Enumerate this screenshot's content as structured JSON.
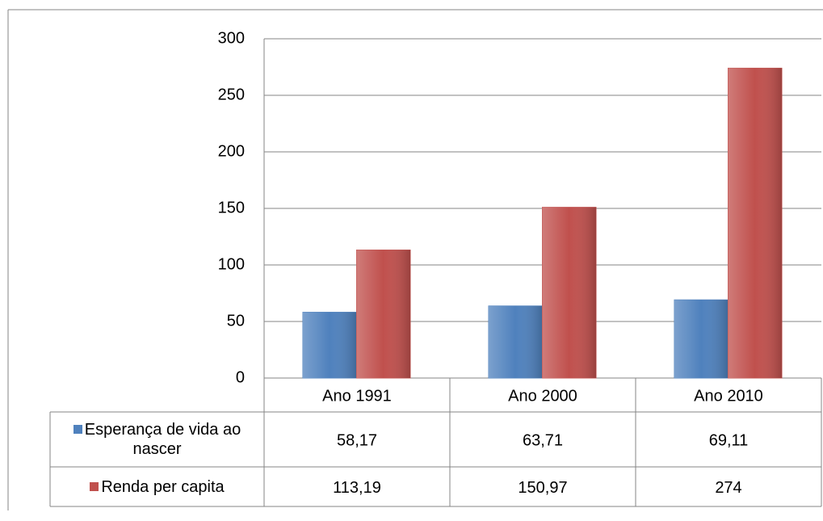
{
  "chart_data": {
    "type": "bar",
    "categories": [
      "Ano 1991",
      "Ano 2000",
      "Ano 2010"
    ],
    "series": [
      {
        "name": "Esperança de vida ao nascer",
        "color": "#4f81bd",
        "values": [
          58.17,
          63.71,
          69.11
        ],
        "value_labels": [
          "58,17",
          "63,71",
          "69,11"
        ]
      },
      {
        "name": "Renda per capita",
        "color": "#c0504d",
        "values": [
          113.19,
          150.97,
          274
        ],
        "value_labels": [
          "113,19",
          "150,97",
          "274"
        ]
      }
    ],
    "ylim": [
      0,
      300
    ],
    "yticks": [
      0,
      50,
      100,
      150,
      200,
      250,
      300
    ],
    "grid": true
  }
}
